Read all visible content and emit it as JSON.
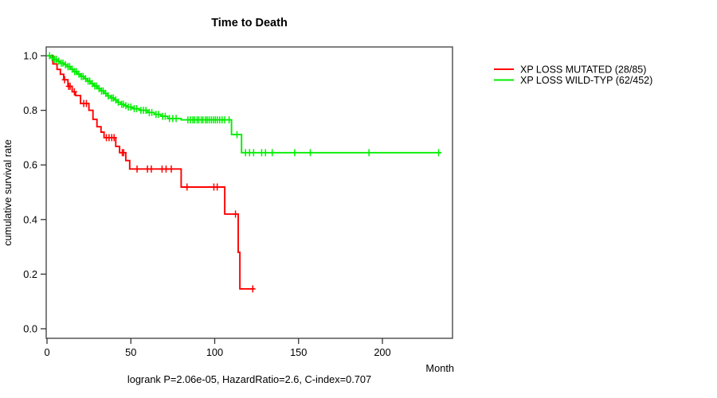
{
  "chart_data": {
    "type": "line",
    "subtype": "kaplan-meier-step",
    "title": "Time to Death",
    "xlabel": "Month",
    "ylabel": "cumulative survival rate",
    "annotation": "logrank P=2.06e-05, HazardRatio=2.6, C-index=0.707",
    "xlim": [
      0,
      242
    ],
    "ylim": [
      0.0,
      1.0
    ],
    "xticks": [
      0,
      50,
      100,
      150,
      200
    ],
    "ytick_labels": [
      "0.0",
      "0.2",
      "0.4",
      "0.6",
      "0.8",
      "1.0"
    ],
    "grid": false,
    "legend_position": "right-outside",
    "axis_color": "#4a4a4a",
    "tick_color": "#333333",
    "series": [
      {
        "name": "XP LOSS MUTATED (28/85)",
        "color": "#ff0000",
        "events_total": "28/85",
        "end_month": 123.5,
        "steps": [
          [
            0,
            1.0
          ],
          [
            3.5,
            0.97
          ],
          [
            6,
            0.95
          ],
          [
            8,
            0.932
          ],
          [
            10,
            0.912
          ],
          [
            12.5,
            0.888
          ],
          [
            15,
            0.868
          ],
          [
            17,
            0.854
          ],
          [
            20,
            0.825
          ],
          [
            25,
            0.8
          ],
          [
            27.4,
            0.767
          ],
          [
            29.8,
            0.74
          ],
          [
            32.2,
            0.72
          ],
          [
            34,
            0.7
          ],
          [
            41,
            0.668
          ],
          [
            43.3,
            0.645
          ],
          [
            47,
            0.616
          ],
          [
            49.3,
            0.585
          ],
          [
            80,
            0.519
          ],
          [
            106,
            0.42
          ],
          [
            114,
            0.28
          ],
          [
            115,
            0.146
          ]
        ],
        "censor_months": [
          10.5,
          12.9,
          13.8,
          16.3,
          21.9,
          23.5,
          35.4,
          37,
          38.6,
          40,
          44.9,
          45.7,
          53.7,
          59.9,
          62.2,
          68.6,
          71,
          74.1,
          83.5,
          99.5,
          101.5,
          112.4,
          122.7
        ]
      },
      {
        "name": "XP LOSS WILD-TYP (62/452)",
        "color": "#00ee00",
        "events_total": "62/452",
        "end_month": 235,
        "steps": [
          [
            0,
            1.0
          ],
          [
            2,
            0.993
          ],
          [
            4,
            0.987
          ],
          [
            6,
            0.98
          ],
          [
            8,
            0.973
          ],
          [
            10,
            0.967
          ],
          [
            12,
            0.96
          ],
          [
            14,
            0.951
          ],
          [
            16,
            0.942
          ],
          [
            18,
            0.933
          ],
          [
            20,
            0.924
          ],
          [
            22,
            0.916
          ],
          [
            24,
            0.907
          ],
          [
            26,
            0.898
          ],
          [
            28,
            0.889
          ],
          [
            30,
            0.88
          ],
          [
            32,
            0.871
          ],
          [
            34,
            0.862
          ],
          [
            36,
            0.853
          ],
          [
            38,
            0.845
          ],
          [
            40,
            0.838
          ],
          [
            42,
            0.83
          ],
          [
            44,
            0.822
          ],
          [
            46,
            0.817
          ],
          [
            48,
            0.812
          ],
          [
            51,
            0.806
          ],
          [
            55,
            0.8
          ],
          [
            60,
            0.792
          ],
          [
            64,
            0.785
          ],
          [
            68,
            0.778
          ],
          [
            72,
            0.77
          ],
          [
            80,
            0.765
          ],
          [
            110,
            0.711
          ],
          [
            116,
            0.645
          ]
        ],
        "censor_months": [
          1.5,
          3,
          4.5,
          5.5,
          7,
          8.5,
          9.5,
          11,
          12.5,
          13.5,
          15,
          16.5,
          17.5,
          19,
          20.5,
          21.5,
          23,
          24.5,
          25.5,
          27,
          28.5,
          29.5,
          31,
          32.5,
          33.5,
          35,
          36.5,
          38.5,
          39.5,
          41,
          42.5,
          44.5,
          45.5,
          47,
          48.5,
          50,
          52,
          53.5,
          56,
          57.5,
          59,
          61,
          62.5,
          65,
          66.5,
          69,
          70.5,
          73,
          75,
          77,
          84,
          85.5,
          87,
          88,
          89.5,
          90.5,
          92,
          93,
          94.5,
          95.5,
          96.7,
          98,
          99.2,
          100.4,
          101.6,
          103,
          104.4,
          106,
          108.6,
          113.3,
          118.4,
          120.8,
          123.2,
          128,
          130.3,
          134.3,
          147.7,
          157,
          192,
          233.5
        ]
      }
    ]
  }
}
